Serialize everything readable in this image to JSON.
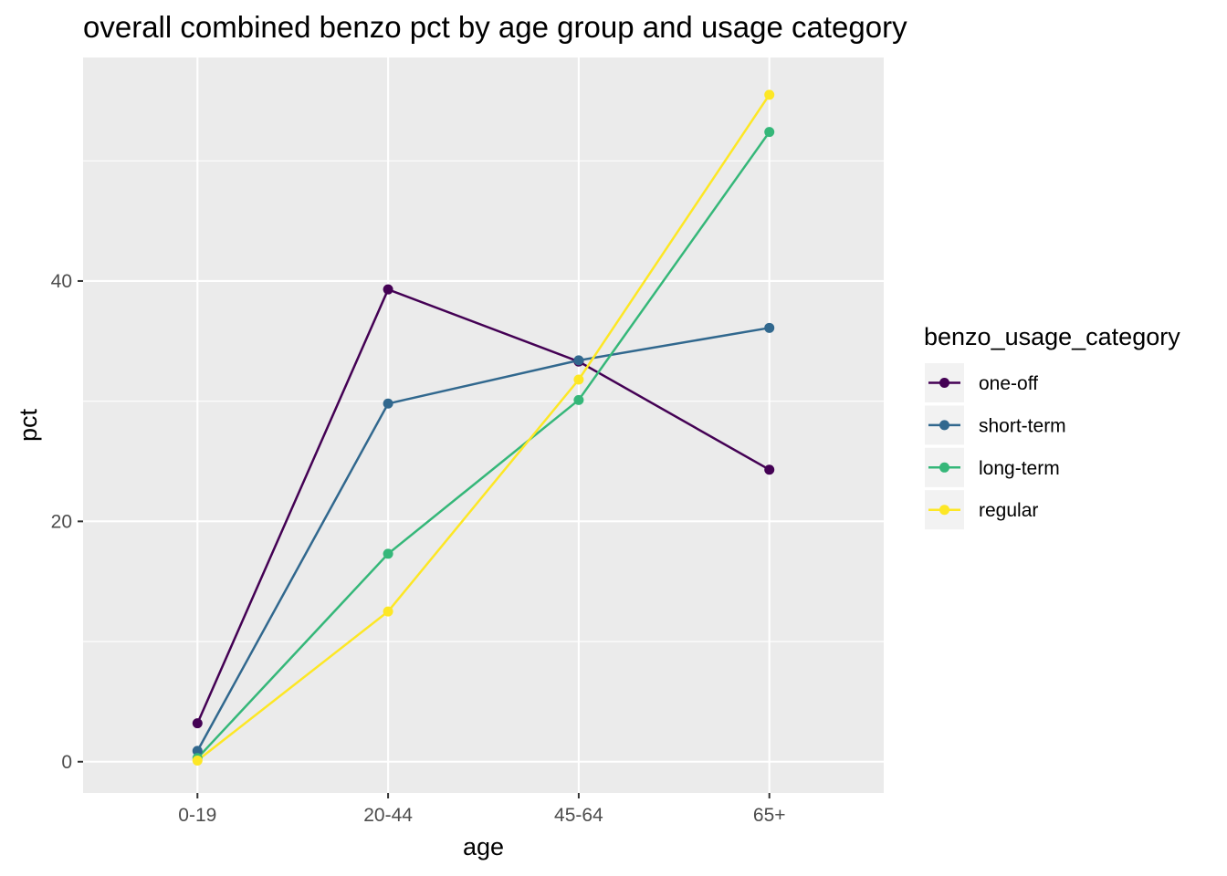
{
  "chart_data": {
    "type": "line",
    "title": "overall combined benzo pct by age group and usage category",
    "xlabel": "age",
    "ylabel": "pct",
    "categories": [
      "0-19",
      "20-44",
      "45-64",
      "65+"
    ],
    "y_ticks": [
      0,
      20,
      40
    ],
    "y_tick_labels": [
      "0",
      "20",
      "40"
    ],
    "ylim": [
      -2.6,
      58.6
    ],
    "grid": true,
    "legend_title": "benzo_usage_category",
    "legend_position": "right",
    "series": [
      {
        "name": "one-off",
        "color": "#440154",
        "values": [
          3.2,
          39.3,
          33.3,
          24.3
        ]
      },
      {
        "name": "short-term",
        "color": "#31688E",
        "values": [
          0.9,
          29.8,
          33.4,
          36.1
        ]
      },
      {
        "name": "long-term",
        "color": "#35B779",
        "values": [
          0.3,
          17.3,
          30.1,
          52.4
        ]
      },
      {
        "name": "regular",
        "color": "#FDE725",
        "values": [
          0.1,
          12.5,
          31.8,
          55.5
        ]
      }
    ]
  }
}
